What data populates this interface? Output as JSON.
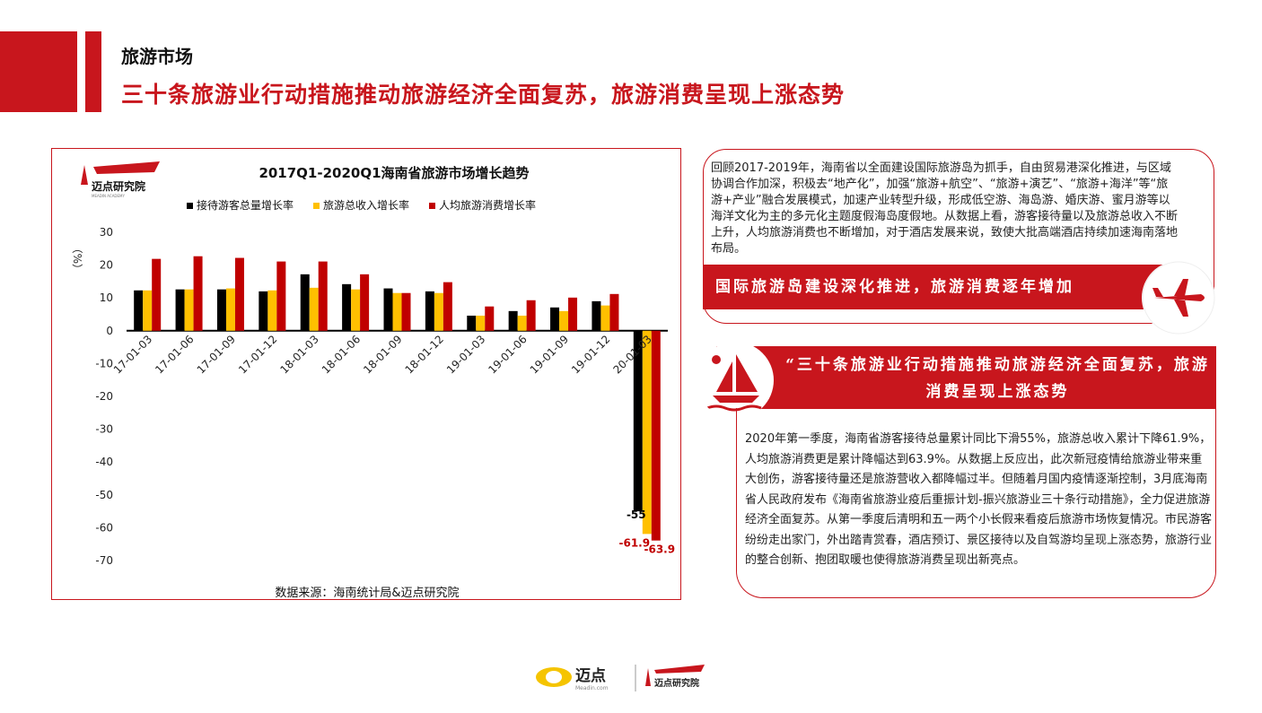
{
  "header": {
    "section": "旅游市场",
    "headline": "三十条旅游业行动措施推动旅游经济全面复苏，旅游消费呈现上涨态势"
  },
  "logo": {
    "text": "迈点研究院",
    "sub": "MEADIN ACADEMY"
  },
  "colors": {
    "brand_red": "#c8161d",
    "black": "#000000",
    "yellow": "#ffc000",
    "red_series": "#c00000"
  },
  "chart_data": {
    "type": "bar",
    "title": "2017Q1-2020Q1海南省旅游市场增长趋势",
    "ylabel": "（%）",
    "xlabel": "",
    "ylim": [
      -70,
      30
    ],
    "yticks": [
      30,
      20,
      10,
      0,
      -10,
      -20,
      -30,
      -40,
      -50,
      -60,
      -70
    ],
    "legend_position": "top",
    "grid": false,
    "categories": [
      "17-01-03",
      "17-01-06",
      "17-01-09",
      "17-01-12",
      "18-01-03",
      "18-01-06",
      "18-01-09",
      "18-01-12",
      "19-01-03",
      "19-01-06",
      "19-01-09",
      "19-01-12",
      "20-01-03"
    ],
    "series": [
      {
        "name": "接待游客总量增长率",
        "color": "#000000",
        "values": [
          12.3,
          12.6,
          12.6,
          12.0,
          17.2,
          14.2,
          12.9,
          12.0,
          4.6,
          6.0,
          7.1,
          9.0,
          -55
        ]
      },
      {
        "name": "旅游总收入增长率",
        "color": "#ffc000",
        "values": [
          12.3,
          12.6,
          12.9,
          12.3,
          13.1,
          12.6,
          11.5,
          11.5,
          4.6,
          4.6,
          6.0,
          7.7,
          -61.9
        ]
      },
      {
        "name": "人均旅游消费增长率",
        "color": "#c00000",
        "values": [
          21.9,
          22.7,
          22.2,
          21.1,
          21.1,
          17.2,
          11.5,
          14.8,
          7.4,
          9.3,
          10.1,
          11.2,
          -63.9
        ]
      }
    ],
    "data_labels": [
      "-55",
      "-61.9",
      "-63.9"
    ],
    "source": "数据来源：海南统计局&迈点研究院"
  },
  "panel1": {
    "text": "回顾2017-2019年，海南省以全面建设国际旅游岛为抓手，自由贸易港深化推进，与区域协调合作加深，积极去“地产化”，加强“旅游+航空”、“旅游+演艺”、“旅游+海洋”等“旅游+产业”融合发展模式，加速产业转型升级，形成低空游、海岛游、婚庆游、蜜月游等以海洋文化为主的多元化主题度假海岛度假地。从数据上看，游客接待量以及旅游总收入不断上升，人均旅游消费也不断增加，对于酒店发展来说，致使大批高端酒店持续加速海南落地布局。",
    "banner": "国际旅游岛建设深化推进，旅游消费逐年增加",
    "icon": "airplane-icon"
  },
  "panel2": {
    "banner": "“三十条旅游业行动措施推动旅游经济全面复苏，旅游消费呈现上涨态势",
    "text": "2020年第一季度，海南省游客接待总量累计同比下滑55%，旅游总收入累计下降61.9%，人均旅游消费更是累计降幅达到63.9%。从数据上反应出，此次新冠疫情给旅游业带来重大创伤，游客接待量还是旅游营收入都降幅过半。但随着月国内疫情逐渐控制，3月底海南省人民政府发布《海南省旅游业疫后重振计划-振兴旅游业三十条行动措施》，全力促进旅游经济全面复苏。从第一季度后清明和五一两个小长假来看疫后旅游市场恢复情况。市民游客纷纷走出家门，外出踏青赏春，酒店预订、景区接待以及自驾游均呈现上涨态势，旅游行业的整合创新、抱团取暖也使得旅游消费呈现出新亮点。",
    "icon": "sailboat-icon"
  },
  "footer": {
    "brand1": "迈点",
    "brand1_sub": "Meadin.com",
    "brand2": "迈点研究院"
  }
}
